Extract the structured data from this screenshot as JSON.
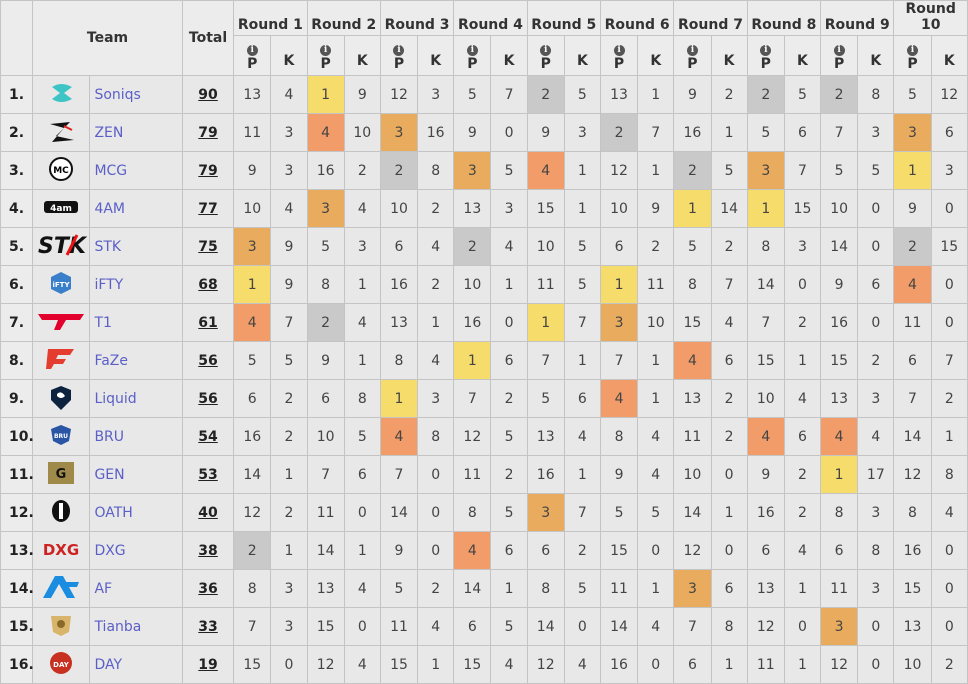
{
  "header": {
    "team": "Team",
    "total": "Total",
    "p": "P",
    "k": "K",
    "rounds": [
      "Round 1",
      "Round 2",
      "Round 3",
      "Round 4",
      "Round 5",
      "Round 6",
      "Round 7",
      "Round 8",
      "Round 9",
      "Round 10"
    ]
  },
  "colors": {
    "c1": "#f6dc6b",
    "c2": "#f29c6a",
    "c3": "#e9ac5e",
    "c4": "#c9c9c9"
  },
  "rows": [
    {
      "rank": "1.",
      "logo": "soniqs-logo",
      "team": "Soniqs",
      "total": "90",
      "rounds": [
        [
          "13",
          "4",
          ""
        ],
        [
          "1",
          "9",
          "c1"
        ],
        [
          "12",
          "3",
          ""
        ],
        [
          "5",
          "7",
          ""
        ],
        [
          "2",
          "5",
          "c4"
        ],
        [
          "13",
          "1",
          ""
        ],
        [
          "9",
          "2",
          ""
        ],
        [
          "2",
          "5",
          "c4"
        ],
        [
          "2",
          "8",
          "c4"
        ],
        [
          "5",
          "12",
          ""
        ]
      ]
    },
    {
      "rank": "2.",
      "logo": "zen-logo",
      "team": "ZEN",
      "total": "79",
      "rounds": [
        [
          "11",
          "3",
          ""
        ],
        [
          "4",
          "10",
          "c2"
        ],
        [
          "3",
          "16",
          "c3"
        ],
        [
          "9",
          "0",
          ""
        ],
        [
          "9",
          "3",
          ""
        ],
        [
          "2",
          "7",
          "c4"
        ],
        [
          "16",
          "1",
          ""
        ],
        [
          "5",
          "6",
          ""
        ],
        [
          "7",
          "3",
          ""
        ],
        [
          "3",
          "6",
          "c3"
        ]
      ]
    },
    {
      "rank": "3.",
      "logo": "mcg-logo",
      "team": "MCG",
      "total": "79",
      "rounds": [
        [
          "9",
          "3",
          ""
        ],
        [
          "16",
          "2",
          ""
        ],
        [
          "2",
          "8",
          "c4"
        ],
        [
          "3",
          "5",
          "c3"
        ],
        [
          "4",
          "1",
          "c2"
        ],
        [
          "12",
          "1",
          ""
        ],
        [
          "2",
          "5",
          "c4"
        ],
        [
          "3",
          "7",
          "c3"
        ],
        [
          "5",
          "5",
          ""
        ],
        [
          "1",
          "3",
          "c1"
        ]
      ]
    },
    {
      "rank": "4.",
      "logo": "4am-logo",
      "team": "4AM",
      "total": "77",
      "rounds": [
        [
          "10",
          "4",
          ""
        ],
        [
          "3",
          "4",
          "c3"
        ],
        [
          "10",
          "2",
          ""
        ],
        [
          "13",
          "3",
          ""
        ],
        [
          "15",
          "1",
          ""
        ],
        [
          "10",
          "9",
          ""
        ],
        [
          "1",
          "14",
          "c1"
        ],
        [
          "1",
          "15",
          "c1"
        ],
        [
          "10",
          "0",
          ""
        ],
        [
          "9",
          "0",
          ""
        ]
      ]
    },
    {
      "rank": "5.",
      "logo": "stk-logo",
      "team": "STK",
      "total": "75",
      "rounds": [
        [
          "3",
          "9",
          "c3"
        ],
        [
          "5",
          "3",
          ""
        ],
        [
          "6",
          "4",
          ""
        ],
        [
          "2",
          "4",
          "c4"
        ],
        [
          "10",
          "5",
          ""
        ],
        [
          "6",
          "2",
          ""
        ],
        [
          "5",
          "2",
          ""
        ],
        [
          "8",
          "3",
          ""
        ],
        [
          "14",
          "0",
          ""
        ],
        [
          "2",
          "15",
          "c4"
        ]
      ]
    },
    {
      "rank": "6.",
      "logo": "ifty-logo",
      "team": "iFTY",
      "total": "68",
      "rounds": [
        [
          "1",
          "9",
          "c1"
        ],
        [
          "8",
          "1",
          ""
        ],
        [
          "16",
          "2",
          ""
        ],
        [
          "10",
          "1",
          ""
        ],
        [
          "11",
          "5",
          ""
        ],
        [
          "1",
          "11",
          "c1"
        ],
        [
          "8",
          "7",
          ""
        ],
        [
          "14",
          "0",
          ""
        ],
        [
          "9",
          "6",
          ""
        ],
        [
          "4",
          "0",
          "c2"
        ]
      ]
    },
    {
      "rank": "7.",
      "logo": "t1-logo",
      "team": "T1",
      "total": "61",
      "rounds": [
        [
          "4",
          "7",
          "c2"
        ],
        [
          "2",
          "4",
          "c4"
        ],
        [
          "13",
          "1",
          ""
        ],
        [
          "16",
          "0",
          ""
        ],
        [
          "1",
          "7",
          "c1"
        ],
        [
          "3",
          "10",
          "c3"
        ],
        [
          "15",
          "4",
          ""
        ],
        [
          "7",
          "2",
          ""
        ],
        [
          "16",
          "0",
          ""
        ],
        [
          "11",
          "0",
          ""
        ]
      ]
    },
    {
      "rank": "8.",
      "logo": "faze-logo",
      "team": "FaZe",
      "total": "56",
      "rounds": [
        [
          "5",
          "5",
          ""
        ],
        [
          "9",
          "1",
          ""
        ],
        [
          "8",
          "4",
          ""
        ],
        [
          "1",
          "6",
          "c1"
        ],
        [
          "7",
          "1",
          ""
        ],
        [
          "7",
          "1",
          ""
        ],
        [
          "4",
          "6",
          "c2"
        ],
        [
          "15",
          "1",
          ""
        ],
        [
          "15",
          "2",
          ""
        ],
        [
          "6",
          "7",
          ""
        ]
      ]
    },
    {
      "rank": "9.",
      "logo": "liquid-logo",
      "team": "Liquid",
      "total": "56",
      "rounds": [
        [
          "6",
          "2",
          ""
        ],
        [
          "6",
          "8",
          ""
        ],
        [
          "1",
          "3",
          "c1"
        ],
        [
          "7",
          "2",
          ""
        ],
        [
          "5",
          "6",
          ""
        ],
        [
          "4",
          "1",
          "c2"
        ],
        [
          "13",
          "2",
          ""
        ],
        [
          "10",
          "4",
          ""
        ],
        [
          "13",
          "3",
          ""
        ],
        [
          "7",
          "2",
          ""
        ]
      ]
    },
    {
      "rank": "10.",
      "logo": "bru-logo",
      "team": "BRU",
      "total": "54",
      "rounds": [
        [
          "16",
          "2",
          ""
        ],
        [
          "10",
          "5",
          ""
        ],
        [
          "4",
          "8",
          "c2"
        ],
        [
          "12",
          "5",
          ""
        ],
        [
          "13",
          "4",
          ""
        ],
        [
          "8",
          "4",
          ""
        ],
        [
          "11",
          "2",
          ""
        ],
        [
          "4",
          "6",
          "c2"
        ],
        [
          "4",
          "4",
          "c2"
        ],
        [
          "14",
          "1",
          ""
        ]
      ]
    },
    {
      "rank": "11.",
      "logo": "gen-logo",
      "team": "GEN",
      "total": "53",
      "rounds": [
        [
          "14",
          "1",
          ""
        ],
        [
          "7",
          "6",
          ""
        ],
        [
          "7",
          "0",
          ""
        ],
        [
          "11",
          "2",
          ""
        ],
        [
          "16",
          "1",
          ""
        ],
        [
          "9",
          "4",
          ""
        ],
        [
          "10",
          "0",
          ""
        ],
        [
          "9",
          "2",
          ""
        ],
        [
          "1",
          "17",
          "c1"
        ],
        [
          "12",
          "8",
          ""
        ]
      ]
    },
    {
      "rank": "12.",
      "logo": "oath-logo",
      "team": "OATH",
      "total": "40",
      "rounds": [
        [
          "12",
          "2",
          ""
        ],
        [
          "11",
          "0",
          ""
        ],
        [
          "14",
          "0",
          ""
        ],
        [
          "8",
          "5",
          ""
        ],
        [
          "3",
          "7",
          "c3"
        ],
        [
          "5",
          "5",
          ""
        ],
        [
          "14",
          "1",
          ""
        ],
        [
          "16",
          "2",
          ""
        ],
        [
          "8",
          "3",
          ""
        ],
        [
          "8",
          "4",
          ""
        ]
      ]
    },
    {
      "rank": "13.",
      "logo": "dxg-logo",
      "team": "DXG",
      "total": "38",
      "rounds": [
        [
          "2",
          "1",
          "c4"
        ],
        [
          "14",
          "1",
          ""
        ],
        [
          "9",
          "0",
          ""
        ],
        [
          "4",
          "6",
          "c2"
        ],
        [
          "6",
          "2",
          ""
        ],
        [
          "15",
          "0",
          ""
        ],
        [
          "12",
          "0",
          ""
        ],
        [
          "6",
          "4",
          ""
        ],
        [
          "6",
          "8",
          ""
        ],
        [
          "16",
          "0",
          ""
        ]
      ]
    },
    {
      "rank": "14.",
      "logo": "af-logo",
      "team": "AF",
      "total": "36",
      "rounds": [
        [
          "8",
          "3",
          ""
        ],
        [
          "13",
          "4",
          ""
        ],
        [
          "5",
          "2",
          ""
        ],
        [
          "14",
          "1",
          ""
        ],
        [
          "8",
          "5",
          ""
        ],
        [
          "11",
          "1",
          ""
        ],
        [
          "3",
          "6",
          "c3"
        ],
        [
          "13",
          "1",
          ""
        ],
        [
          "11",
          "3",
          ""
        ],
        [
          "15",
          "0",
          ""
        ]
      ]
    },
    {
      "rank": "15.",
      "logo": "tianba-logo",
      "team": "Tianba",
      "total": "33",
      "rounds": [
        [
          "7",
          "3",
          ""
        ],
        [
          "15",
          "0",
          ""
        ],
        [
          "11",
          "4",
          ""
        ],
        [
          "6",
          "5",
          ""
        ],
        [
          "14",
          "0",
          ""
        ],
        [
          "14",
          "4",
          ""
        ],
        [
          "7",
          "8",
          ""
        ],
        [
          "12",
          "0",
          ""
        ],
        [
          "3",
          "0",
          "c3"
        ],
        [
          "13",
          "0",
          ""
        ]
      ]
    },
    {
      "rank": "16.",
      "logo": "day-logo",
      "team": "DAY",
      "total": "19",
      "rounds": [
        [
          "15",
          "0",
          ""
        ],
        [
          "12",
          "4",
          ""
        ],
        [
          "15",
          "1",
          ""
        ],
        [
          "15",
          "4",
          ""
        ],
        [
          "12",
          "4",
          ""
        ],
        [
          "16",
          "0",
          ""
        ],
        [
          "6",
          "1",
          ""
        ],
        [
          "11",
          "1",
          ""
        ],
        [
          "12",
          "0",
          ""
        ],
        [
          "10",
          "2",
          ""
        ]
      ]
    }
  ]
}
